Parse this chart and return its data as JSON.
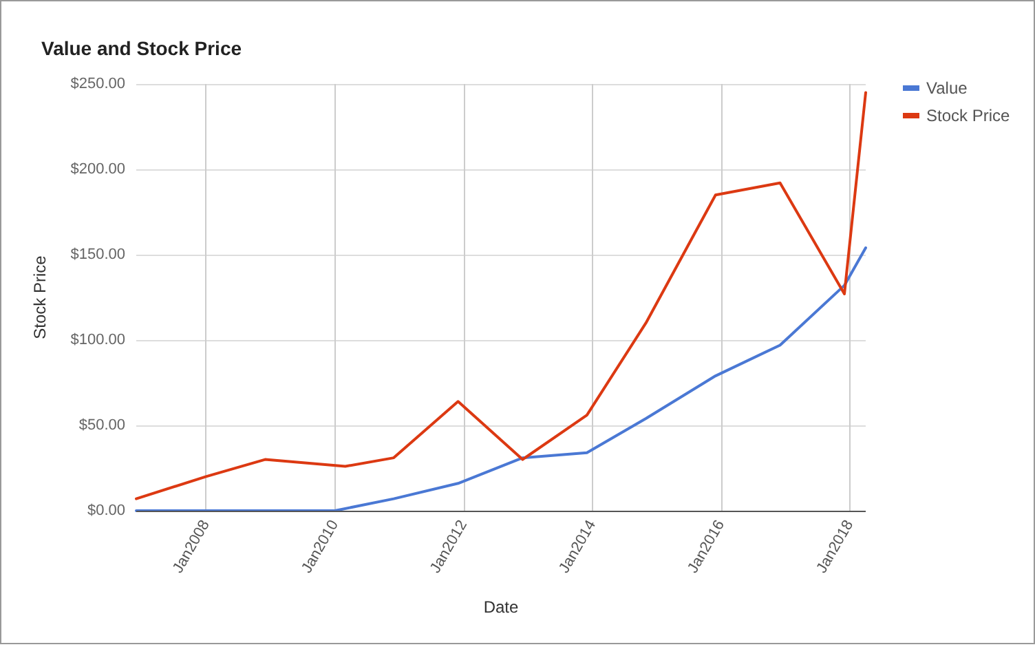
{
  "chart_data": {
    "type": "line",
    "title": "Value and Stock Price",
    "xlabel": "Date",
    "ylabel": "Stock Price",
    "xlim": [
      "2006-12",
      "2018-04"
    ],
    "xticks": [
      {
        "value": "2008-01",
        "label": "Jan2008"
      },
      {
        "value": "2010-01",
        "label": "Jan2010"
      },
      {
        "value": "2012-01",
        "label": "Jan2012"
      },
      {
        "value": "2014-01",
        "label": "Jan2014"
      },
      {
        "value": "2016-01",
        "label": "Jan2016"
      },
      {
        "value": "2018-01",
        "label": "Jan2018"
      }
    ],
    "ylim": [
      0,
      250
    ],
    "yticks": [
      {
        "value": 0,
        "label": "$0.00"
      },
      {
        "value": 50,
        "label": "$50.00"
      },
      {
        "value": 100,
        "label": "$100.00"
      },
      {
        "value": 150,
        "label": "$150.00"
      },
      {
        "value": 200,
        "label": "$200.00"
      },
      {
        "value": 250,
        "label": "$250.00"
      }
    ],
    "grid": true,
    "legend": "right",
    "marker": "none",
    "line_style": "solid",
    "series": [
      {
        "name": "Value",
        "color": "#4a78d4",
        "x": [
          "2006-12",
          "2010-01",
          "2010-12",
          "2011-12",
          "2012-12",
          "2013-12",
          "2014-11",
          "2015-12",
          "2016-12",
          "2017-12",
          "2018-04"
        ],
        "values": [
          0,
          0,
          7,
          16,
          31,
          34,
          54,
          79,
          97,
          132,
          154
        ]
      },
      {
        "name": "Stock Price",
        "color": "#dc3912",
        "x": [
          "2006-12",
          "2008-01",
          "2008-12",
          "2010-03",
          "2010-12",
          "2011-12",
          "2012-12",
          "2013-12",
          "2014-11",
          "2015-12",
          "2016-12",
          "2017-12",
          "2018-04"
        ],
        "values": [
          7,
          20,
          30,
          26,
          31,
          64,
          30,
          56,
          110,
          185,
          192,
          127,
          245
        ]
      }
    ]
  }
}
